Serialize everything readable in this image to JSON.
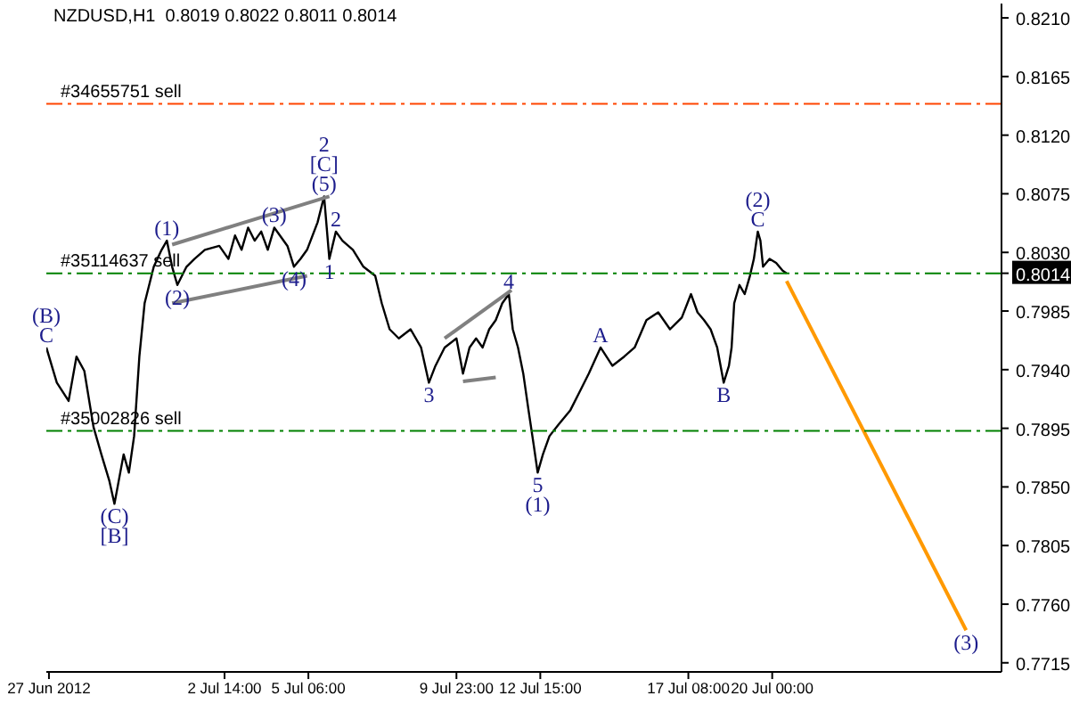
{
  "chart_data": {
    "type": "line",
    "title": "NZDUSD,H1  0.8019 0.8022 0.8011 0.8014",
    "xlim": [
      "2012-06-26T22:00",
      "2012-07-27T07:00"
    ],
    "xticks": [
      {
        "value": "2012-06-27T00:00",
        "label": "27 Jun 2012"
      },
      {
        "value": "2012-07-02T14:00",
        "label": "2 Jul 14:00"
      },
      {
        "value": "2012-07-05T06:00",
        "label": "5 Jul 06:00"
      },
      {
        "value": "2012-07-09T23:00",
        "label": "9 Jul 23:00"
      },
      {
        "value": "2012-07-12T15:00",
        "label": "12 Jul 15:00"
      },
      {
        "value": "2012-07-17T08:00",
        "label": "17 Jul 08:00"
      },
      {
        "value": "2012-07-20T00:00",
        "label": "20 Jul 00:00"
      }
    ],
    "ylim": [
      0.7708,
      0.8221
    ],
    "yticks": [
      {
        "value": 0.7715,
        "label": "0.7715"
      },
      {
        "value": 0.776,
        "label": "0.7760"
      },
      {
        "value": 0.7805,
        "label": "0.7805"
      },
      {
        "value": 0.785,
        "label": "0.7850"
      },
      {
        "value": 0.7895,
        "label": "0.7895"
      },
      {
        "value": 0.794,
        "label": "0.7940"
      },
      {
        "value": 0.7985,
        "label": "0.7985"
      },
      {
        "value": 0.803,
        "label": "0.8030"
      },
      {
        "value": 0.8075,
        "label": "0.8075"
      },
      {
        "value": 0.812,
        "label": "0.8120"
      },
      {
        "value": 0.8165,
        "label": "0.8165"
      },
      {
        "value": 0.821,
        "label": "0.8210"
      },
      {
        "value": 0.8014,
        "label": "0.8014"
      }
    ],
    "grid": false,
    "legend": false,
    "marker": "none",
    "line_style": "solid",
    "series": [
      {
        "color": "#000000",
        "x": [
          "2012-06-26T22:00",
          "2012-06-27T06:00",
          "2012-06-27T15:00",
          "2012-06-27T21:00",
          "2012-06-28T03:00",
          "2012-06-28T10:00",
          "2012-06-28T16:00",
          "2012-06-28T22:00",
          "2012-06-29T02:00",
          "2012-06-29T09:00",
          "2012-06-29T13:00",
          "2012-06-29T17:00",
          "2012-06-29T21:00",
          "2012-06-30T01:00",
          "2012-06-30T08:00",
          "2012-06-30T14:00",
          "2012-06-30T18:00",
          "2012-06-30T22:00",
          "2012-07-01T02:00",
          "2012-07-01T09:00",
          "2012-07-01T15:00",
          "2012-07-01T23:00",
          "2012-07-02T10:00",
          "2012-07-02T17:00",
          "2012-07-02T22:00",
          "2012-07-03T03:00",
          "2012-07-03T08:00",
          "2012-07-03T13:00",
          "2012-07-03T18:00",
          "2012-07-03T23:00",
          "2012-07-04T04:00",
          "2012-07-04T09:00",
          "2012-07-04T14:00",
          "2012-07-04T19:00",
          "2012-07-05T00:00",
          "2012-07-05T05:00",
          "2012-07-05T13:00",
          "2012-07-05T18:00",
          "2012-07-05T22:00",
          "2012-07-06T03:00",
          "2012-07-06T08:00",
          "2012-07-06T16:00",
          "2012-07-07T00:00",
          "2012-07-07T09:00",
          "2012-07-07T14:00",
          "2012-07-07T20:00",
          "2012-07-08T03:00",
          "2012-07-08T12:00",
          "2012-07-08T20:00",
          "2012-07-09T02:00",
          "2012-07-09T07:00",
          "2012-07-09T14:00",
          "2012-07-09T23:00",
          "2012-07-10T04:00",
          "2012-07-10T09:00",
          "2012-07-10T14:00",
          "2012-07-10T19:00",
          "2012-07-11T00:00",
          "2012-07-11T05:00",
          "2012-07-11T10:00",
          "2012-07-11T15:00",
          "2012-07-11T18:00",
          "2012-07-11T22:00",
          "2012-07-12T02:00",
          "2012-07-12T06:00",
          "2012-07-12T10:00",
          "2012-07-12T13:00",
          "2012-07-12T17:00",
          "2012-07-12T22:00",
          "2012-07-13T05:00",
          "2012-07-13T14:00",
          "2012-07-13T21:00",
          "2012-07-14T04:00",
          "2012-07-14T13:00",
          "2012-07-14T22:00",
          "2012-07-15T07:00",
          "2012-07-15T15:00",
          "2012-07-16T00:00",
          "2012-07-16T09:00",
          "2012-07-16T18:00",
          "2012-07-17T03:00",
          "2012-07-17T10:00",
          "2012-07-17T15:00",
          "2012-07-17T20:00",
          "2012-07-18T01:00",
          "2012-07-18T06:00",
          "2012-07-18T11:00",
          "2012-07-18T15:00",
          "2012-07-18T17:00",
          "2012-07-18T19:00",
          "2012-07-18T23:00",
          "2012-07-19T03:00",
          "2012-07-19T07:00",
          "2012-07-19T10:00",
          "2012-07-19T13:00",
          "2012-07-19T15:00",
          "2012-07-19T17:00",
          "2012-07-19T22:00",
          "2012-07-20T03:00",
          "2012-07-20T08:00",
          "2012-07-20T11:00"
        ],
        "values": [
          0.7957,
          0.793,
          0.7916,
          0.795,
          0.7939,
          0.7896,
          0.7875,
          0.7855,
          0.7837,
          0.7875,
          0.7861,
          0.7889,
          0.795,
          0.7991,
          0.8019,
          0.8032,
          0.8039,
          0.8019,
          0.8005,
          0.8019,
          0.8025,
          0.8032,
          0.8035,
          0.8025,
          0.8043,
          0.8032,
          0.8049,
          0.8039,
          0.8046,
          0.8032,
          0.8049,
          0.8042,
          0.8035,
          0.8019,
          0.8025,
          0.8032,
          0.8053,
          0.8073,
          0.8025,
          0.8046,
          0.8039,
          0.8032,
          0.8019,
          0.8012,
          0.7991,
          0.7971,
          0.7964,
          0.7971,
          0.7957,
          0.793,
          0.7943,
          0.7957,
          0.7964,
          0.7937,
          0.7957,
          0.7964,
          0.7957,
          0.7971,
          0.7978,
          0.7991,
          0.7998,
          0.7971,
          0.7957,
          0.7937,
          0.7909,
          0.7882,
          0.7861,
          0.7875,
          0.7889,
          0.7898,
          0.7909,
          0.7923,
          0.7937,
          0.7957,
          0.7943,
          0.795,
          0.7957,
          0.7978,
          0.7984,
          0.7971,
          0.798,
          0.7998,
          0.7984,
          0.7978,
          0.7971,
          0.7957,
          0.793,
          0.7943,
          0.7957,
          0.7991,
          0.8005,
          0.7998,
          0.8012,
          0.8025,
          0.8046,
          0.8039,
          0.8019,
          0.8025,
          0.8022,
          0.8016,
          0.8014
        ]
      },
      {
        "color": "#808080",
        "x": [
          "2012-06-30T22:00",
          "2012-07-05T22:00"
        ],
        "values": [
          0.8036,
          0.8073
        ]
      },
      {
        "color": "#808080",
        "x": [
          "2012-06-30T22:00",
          "2012-07-05T05:00"
        ],
        "values": [
          0.7991,
          0.8012
        ]
      },
      {
        "color": "#808080",
        "x": [
          "2012-07-09T14:00",
          "2012-07-11T17:00"
        ],
        "values": [
          0.7964,
          0.8001
        ]
      },
      {
        "color": "#808080",
        "x": [
          "2012-07-10T04:00",
          "2012-07-11T05:00"
        ],
        "values": [
          0.7931,
          0.7934
        ]
      },
      {
        "color": "#ff9900",
        "x": [
          "2012-07-20T11:00",
          "2012-07-26T04:00"
        ],
        "values": [
          0.8008,
          0.774
        ]
      }
    ],
    "ref_lines": [
      {
        "axis": "y",
        "value": 0.8144,
        "label": "#34655751 sell",
        "color": "#ff4500",
        "line_style": "dashdot"
      },
      {
        "axis": "y",
        "value": 0.8014,
        "label": "#35114637 sell",
        "color": "#008000",
        "line_style": "dashdot"
      },
      {
        "axis": "y",
        "value": 0.7893,
        "label": "#35002826 sell",
        "color": "#008000",
        "line_style": "dashdot"
      }
    ],
    "annotations": [
      {
        "text": "C",
        "x": "2012-06-26T22:00",
        "y": 0.7957
      },
      {
        "text": "(B)",
        "x": "2012-06-26T22:00",
        "y": 0.7957
      },
      {
        "text": "(C)",
        "x": "2012-06-29T02:00",
        "y": 0.7837
      },
      {
        "text": "[B]",
        "x": "2012-06-29T02:00",
        "y": 0.7837
      },
      {
        "text": "(1)",
        "x": "2012-06-30T18:00",
        "y": 0.8039
      },
      {
        "text": "(2)",
        "x": "2012-07-01T02:00",
        "y": 0.8005
      },
      {
        "text": "(3)",
        "x": "2012-07-04T04:00",
        "y": 0.8049
      },
      {
        "text": "(4)",
        "x": "2012-07-04T19:00",
        "y": 0.8019
      },
      {
        "text": "(5)",
        "x": "2012-07-05T18:00",
        "y": 0.8073
      },
      {
        "text": "[C]",
        "x": "2012-07-05T18:00",
        "y": 0.8073
      },
      "2",
      {
        "text": "1",
        "x": "2012-07-05T22:00",
        "y": 0.8025
      },
      {
        "text": "2",
        "x": "2012-07-06T03:00",
        "y": 0.8046
      },
      {
        "text": "3",
        "x": "2012-07-09T02:00",
        "y": 0.793
      },
      {
        "text": "4",
        "x": "2012-07-11T15:00",
        "y": 0.7998
      },
      {
        "text": "5",
        "x": "2012-07-12T13:00",
        "y": 0.7861
      },
      {
        "text": "(1)",
        "x": "2012-07-12T13:00",
        "y": 0.7861
      },
      {
        "text": "A",
        "x": "2012-07-14T13:00",
        "y": 0.7957
      },
      {
        "text": "B",
        "x": "2012-07-18T11:00",
        "y": 0.793
      },
      {
        "text": "C",
        "x": "2012-07-19T13:00",
        "y": 0.8046
      },
      {
        "text": "(2)",
        "x": "2012-07-19T13:00",
        "y": 0.8046
      },
      {
        "text": "(3)",
        "x": "2012-07-26T04:00",
        "y": 0.774
      }
    ]
  }
}
